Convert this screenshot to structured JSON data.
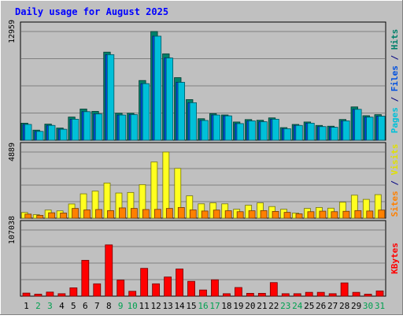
{
  "chart_data": {
    "type": "bar",
    "title": "Daily usage for August 2025",
    "categories": [
      "1",
      "2",
      "3",
      "4",
      "5",
      "6",
      "7",
      "8",
      "9",
      "10",
      "11",
      "12",
      "13",
      "14",
      "15",
      "16",
      "17",
      "18",
      "19",
      "20",
      "21",
      "22",
      "23",
      "24",
      "25",
      "26",
      "27",
      "28",
      "29",
      "30",
      "31"
    ],
    "weekend_days": [
      "2",
      "3",
      "9",
      "10",
      "16",
      "17",
      "23",
      "24",
      "30",
      "31"
    ],
    "panels": [
      {
        "id": "hits-files-pages",
        "ymax_label": "12959",
        "ymax": 12959,
        "side_labels": [
          {
            "text": "Pages",
            "color": "#00c0d8"
          },
          {
            "text": " / ",
            "color": "#000080"
          },
          {
            "text": "Files",
            "color": "#0050e0"
          },
          {
            "text": " / ",
            "color": "#000080"
          },
          {
            "text": "Hits",
            "color": "#00806a"
          }
        ],
        "series": [
          {
            "name": "Hits",
            "color": "#00806a",
            "values": [
              2030,
              1200,
              1920,
              1450,
              2760,
              3720,
              3440,
              10500,
              3220,
              3220,
              7120,
              12959,
              10300,
              7460,
              4840,
              2560,
              3170,
              3010,
              2170,
              2460,
              2380,
              2660,
              1500,
              1880,
              2170,
              1760,
              1670,
              2470,
              3970,
              2920,
              3050
            ]
          },
          {
            "name": "Files",
            "color": "#0050e0",
            "values": [
              1880,
              1050,
              1760,
              1300,
              2500,
              3400,
              3130,
              10200,
              3000,
              3050,
              6740,
              12400,
              9800,
              6900,
              4470,
              2350,
              3000,
              2900,
              1980,
              2300,
              2200,
              2500,
              1370,
              1760,
              2030,
              1620,
              1540,
              2300,
              3680,
              2750,
              2860
            ]
          },
          {
            "name": "Pages",
            "color": "#00c0d8",
            "values": [
              1880,
              1050,
              1760,
              1300,
              2500,
              3400,
              3130,
              10200,
              3000,
              3050,
              6740,
              12400,
              9800,
              6900,
              4470,
              2350,
              3000,
              2900,
              1980,
              2300,
              2200,
              2500,
              1370,
              1760,
              2030,
              1620,
              1540,
              2300,
              3680,
              2750,
              2860
            ]
          }
        ]
      },
      {
        "id": "visits-sites",
        "ymax_label": "4889",
        "ymax": 4889,
        "side_labels": [
          {
            "text": "Sites",
            "color": "#ff8000"
          },
          {
            "text": " / ",
            "color": "#000080"
          },
          {
            "text": "Visits",
            "color": "#e0e000"
          }
        ],
        "series": [
          {
            "name": "Visits",
            "color": "#ffff20",
            "values": [
              420,
              260,
              600,
              540,
              1050,
              1800,
              2000,
              2600,
              1860,
              1900,
              2480,
              4150,
              4889,
              3680,
              1650,
              1060,
              1130,
              1060,
              660,
              960,
              1130,
              860,
              660,
              380,
              720,
              790,
              740,
              1180,
              1700,
              1390,
              1740
            ]
          },
          {
            "name": "Sites",
            "color": "#ff8000",
            "values": [
              300,
              210,
              400,
              380,
              720,
              610,
              640,
              560,
              760,
              720,
              640,
              650,
              720,
              790,
              610,
              530,
              600,
              550,
              480,
              550,
              560,
              500,
              430,
              320,
              480,
              520,
              480,
              510,
              560,
              530,
              600
            ]
          }
        ]
      },
      {
        "id": "kbytes",
        "ymax_label": "107038",
        "ymax": 107038,
        "side_labels": [
          {
            "text": "KBytes",
            "color": "#ff0000"
          }
        ],
        "series": [
          {
            "name": "KBytes",
            "color": "#ff0000",
            "values": [
              5000,
              3300,
              6600,
              4000,
              13500,
              58000,
              20000,
              83000,
              26000,
              7900,
              45000,
              20000,
              31000,
              44000,
              24000,
              10000,
              26500,
              4000,
              14000,
              4600,
              4600,
              22000,
              4000,
              4000,
              6200,
              6200,
              4000,
              21500,
              6200,
              3300,
              8500
            ]
          }
        ]
      }
    ]
  }
}
